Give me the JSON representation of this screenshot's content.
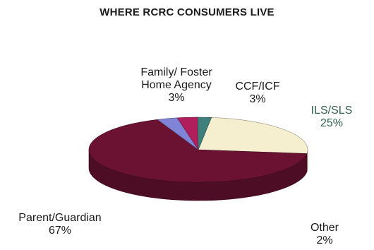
{
  "chart_data": {
    "type": "pie",
    "title": "WHERE RCRC CONSUMERS LIVE",
    "slices": [
      {
        "name": "ILS/SLS",
        "value": 25,
        "percent": "25%",
        "color": "#f5efcf"
      },
      {
        "name": "Parent/Guardian",
        "value": 67,
        "percent": "67%",
        "color": "#6b1232"
      },
      {
        "name": "Family/ Foster Home Agency",
        "value": 3,
        "percent": "3%",
        "color": "#7f84d6"
      },
      {
        "name": "CCF/ICF",
        "value": 3,
        "percent": "3%",
        "color": "#b01e5c"
      },
      {
        "name": "Other",
        "value": 2,
        "percent": "2%",
        "color": "#3e7f7c"
      }
    ],
    "labels": {
      "family": {
        "line1": "Family/ Foster",
        "line2": "Home Agency",
        "pct": "3%"
      },
      "ccf": {
        "line1": "CCF/ICF",
        "pct": "3%"
      },
      "ils": {
        "line1": "ILS/SLS",
        "pct": "25%",
        "color": "#2f5f4a"
      },
      "parent": {
        "line1": "Parent/Guardian",
        "pct": "67%"
      },
      "other": {
        "line1": "Other",
        "pct": "2%"
      }
    },
    "style": "3d-pie",
    "legend": "none"
  }
}
